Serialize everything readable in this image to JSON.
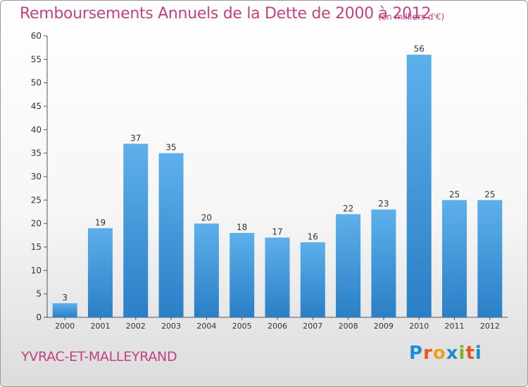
{
  "title": "Remboursements Annuels de la Dette de 2000 à 2012",
  "subtitle": "(en milliers d'€)",
  "place": "YVRAC-ET-MALLEYRAND",
  "logo": [
    "P",
    "r",
    "o",
    "x",
    "i",
    "t",
    "i"
  ],
  "colors": {
    "bar": "#3a8fd6",
    "bar_light": "#5aaee8",
    "text_accent": "#c2417e"
  },
  "chart_data": {
    "type": "bar",
    "title": "Remboursements Annuels de la Dette de 2000 à 2012",
    "subtitle": "(en milliers d'€)",
    "categories": [
      "2000",
      "2001",
      "2002",
      "2003",
      "2004",
      "2005",
      "2006",
      "2007",
      "2008",
      "2009",
      "2010",
      "2011",
      "2012"
    ],
    "values": [
      3,
      19,
      37,
      35,
      20,
      18,
      17,
      16,
      22,
      23,
      56,
      25,
      25
    ],
    "ylim": [
      0,
      60
    ],
    "yticks": [
      0,
      5,
      10,
      15,
      20,
      25,
      30,
      35,
      40,
      45,
      50,
      55,
      60
    ],
    "grid": false,
    "legend": "none"
  }
}
